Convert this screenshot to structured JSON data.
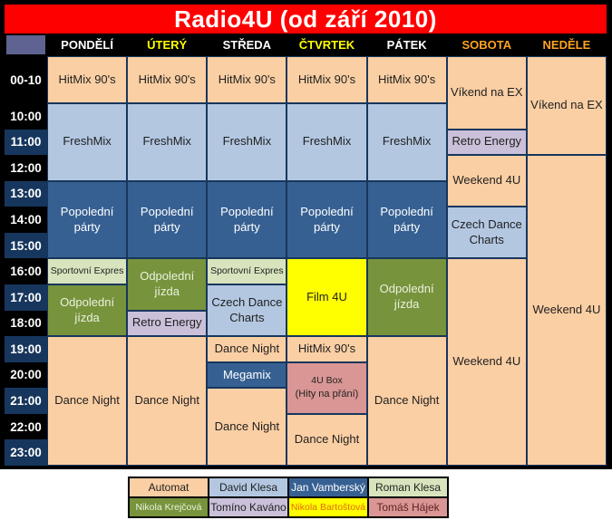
{
  "title": "Radio4U (od září 2010)",
  "ui_colors": {
    "title_bg": "#FF0000",
    "title_text": "#FFFFFF",
    "frame_and_header_bg": "#000000",
    "time_row_black": "#000000",
    "time_row_navy": "#17365D",
    "corner_cell": "#5F6391",
    "grid_border": "#17365D",
    "day_label_white": "#FFFFFF",
    "day_label_yellow": "#FFFF00",
    "day_label_orange": "#FFA321"
  },
  "colors": {
    "peach": {
      "bg": "#FBCFA4",
      "text": "#1F1F1F"
    },
    "lightblue": {
      "bg": "#B3C7E1",
      "text": "#1F1F1F"
    },
    "steelblue": {
      "bg": "#376092",
      "text": "#FFFFFF"
    },
    "lightgreen": {
      "bg": "#D7E4BD",
      "text": "#1F1F1F"
    },
    "olive": {
      "bg": "#77933C",
      "text": "#EBF1DE"
    },
    "purple": {
      "bg": "#CBC0D9",
      "text": "#1F1F1F"
    },
    "yellow": {
      "bg": "#FFFF00",
      "text": "#1F1F1F"
    },
    "rose": {
      "bg": "#D99694",
      "text": "#1F1F1F"
    }
  },
  "header": {
    "days": [
      {
        "label": "PONDĚLÍ",
        "color": "#FFFFFF"
      },
      {
        "label": "ÚTERÝ",
        "color": "#FFFF00"
      },
      {
        "label": "STŘEDA",
        "color": "#FFFFFF"
      },
      {
        "label": "ČTVRTEK",
        "color": "#FFFF00"
      },
      {
        "label": "PÁTEK",
        "color": "#FFFFFF"
      },
      {
        "label": "SOBOTA",
        "color": "#FFA321"
      },
      {
        "label": "NEDĚLE",
        "color": "#FFA321"
      }
    ]
  },
  "schedule": {
    "times": [
      {
        "label": "00-10",
        "bg": "#000000"
      },
      {
        "label": "10:00",
        "bg": "#000000"
      },
      {
        "label": "11:00",
        "bg": "#17365D"
      },
      {
        "label": "12:00",
        "bg": "#000000"
      },
      {
        "label": "13:00",
        "bg": "#17365D"
      },
      {
        "label": "14:00",
        "bg": "#000000"
      },
      {
        "label": "15:00",
        "bg": "#17365D"
      },
      {
        "label": "16:00",
        "bg": "#000000"
      },
      {
        "label": "17:00",
        "bg": "#17365D"
      },
      {
        "label": "18:00",
        "bg": "#000000"
      },
      {
        "label": "19:00",
        "bg": "#17365D"
      },
      {
        "label": "20:00",
        "bg": "#000000"
      },
      {
        "label": "21:00",
        "bg": "#17365D"
      },
      {
        "label": "22:00",
        "bg": "#000000"
      },
      {
        "label": "23:00",
        "bg": "#17365D"
      }
    ],
    "cells": [
      {
        "day": 1,
        "row": 1,
        "rowspan": 1,
        "label": "HitMix 90's",
        "color": "peach"
      },
      {
        "day": 1,
        "row": 2,
        "rowspan": 3,
        "label": "FreshMix",
        "color": "lightblue"
      },
      {
        "day": 1,
        "row": 5,
        "rowspan": 3,
        "label": "Popolední párty",
        "color": "steelblue"
      },
      {
        "day": 1,
        "row": 8,
        "rowspan": 1,
        "label": "Sportovní Expres",
        "color": "lightgreen",
        "small": true
      },
      {
        "day": 1,
        "row": 9,
        "rowspan": 2,
        "label": "Odpolední jízda",
        "color": "olive"
      },
      {
        "day": 1,
        "row": 11,
        "rowspan": 5,
        "label": "Dance Night",
        "color": "peach"
      },
      {
        "day": 2,
        "row": 1,
        "rowspan": 1,
        "label": "HitMix 90's",
        "color": "peach"
      },
      {
        "day": 2,
        "row": 2,
        "rowspan": 3,
        "label": "FreshMix",
        "color": "lightblue"
      },
      {
        "day": 2,
        "row": 5,
        "rowspan": 3,
        "label": "Popolední párty",
        "color": "steelblue"
      },
      {
        "day": 2,
        "row": 8,
        "rowspan": 2,
        "label": "Odpolední jízda",
        "color": "olive"
      },
      {
        "day": 2,
        "row": 10,
        "rowspan": 1,
        "label": "Retro Energy",
        "color": "purple"
      },
      {
        "day": 2,
        "row": 11,
        "rowspan": 5,
        "label": "Dance Night",
        "color": "peach"
      },
      {
        "day": 3,
        "row": 1,
        "rowspan": 1,
        "label": "HitMix 90's",
        "color": "peach"
      },
      {
        "day": 3,
        "row": 2,
        "rowspan": 3,
        "label": "FreshMix",
        "color": "lightblue"
      },
      {
        "day": 3,
        "row": 5,
        "rowspan": 3,
        "label": "Popolední párty",
        "color": "steelblue"
      },
      {
        "day": 3,
        "row": 8,
        "rowspan": 1,
        "label": "Sportovní Expres",
        "color": "lightgreen",
        "small": true
      },
      {
        "day": 3,
        "row": 9,
        "rowspan": 2,
        "label": "Czech Dance Charts",
        "color": "lightblue"
      },
      {
        "day": 3,
        "row": 11,
        "rowspan": 1,
        "label": "Dance Night",
        "color": "peach"
      },
      {
        "day": 3,
        "row": 12,
        "rowspan": 1,
        "label": "Megamix",
        "color": "steelblue"
      },
      {
        "day": 3,
        "row": 13,
        "rowspan": 3,
        "label": "Dance Night",
        "color": "peach"
      },
      {
        "day": 4,
        "row": 1,
        "rowspan": 1,
        "label": "HitMix 90's",
        "color": "peach"
      },
      {
        "day": 4,
        "row": 2,
        "rowspan": 3,
        "label": "FreshMix",
        "color": "lightblue"
      },
      {
        "day": 4,
        "row": 5,
        "rowspan": 3,
        "label": "Popolední párty",
        "color": "steelblue"
      },
      {
        "day": 4,
        "row": 8,
        "rowspan": 3,
        "label": "Film 4U",
        "color": "yellow"
      },
      {
        "day": 4,
        "row": 11,
        "rowspan": 1,
        "label": "HitMix 90's",
        "color": "peach"
      },
      {
        "day": 4,
        "row": 12,
        "rowspan": 2,
        "label": "4U Box",
        "label2": "(Hity na přání)",
        "color": "rose",
        "small": true
      },
      {
        "day": 4,
        "row": 14,
        "rowspan": 2,
        "label": "Dance Night",
        "color": "peach"
      },
      {
        "day": 5,
        "row": 1,
        "rowspan": 1,
        "label": "HitMix 90's",
        "color": "peach"
      },
      {
        "day": 5,
        "row": 2,
        "rowspan": 3,
        "label": "FreshMix",
        "color": "lightblue"
      },
      {
        "day": 5,
        "row": 5,
        "rowspan": 3,
        "label": "Popolední párty",
        "color": "steelblue"
      },
      {
        "day": 5,
        "row": 8,
        "rowspan": 3,
        "label": "Odpolední jízda",
        "color": "olive"
      },
      {
        "day": 5,
        "row": 11,
        "rowspan": 5,
        "label": "Dance Night",
        "color": "peach"
      },
      {
        "day": 6,
        "row": 1,
        "rowspan": 2,
        "label": "Víkend na EX",
        "color": "peach"
      },
      {
        "day": 6,
        "row": 3,
        "rowspan": 1,
        "label": "Retro Energy",
        "color": "purple"
      },
      {
        "day": 6,
        "row": 4,
        "rowspan": 2,
        "label": "Weekend 4U",
        "color": "peach"
      },
      {
        "day": 6,
        "row": 6,
        "rowspan": 2,
        "label": "Czech Dance Charts",
        "color": "lightblue"
      },
      {
        "day": 6,
        "row": 8,
        "rowspan": 8,
        "label": "Weekend 4U",
        "color": "peach"
      },
      {
        "day": 7,
        "row": 1,
        "rowspan": 3,
        "label": "Víkend na EX",
        "color": "peach"
      },
      {
        "day": 7,
        "row": 4,
        "rowspan": 12,
        "label": "Weekend 4U",
        "color": "peach"
      }
    ]
  },
  "legend": {
    "text_overrides": {
      "yellow": "#E36C09",
      "rose": "#5E2321"
    },
    "rows": [
      [
        {
          "label": "Automat",
          "color": "peach"
        },
        {
          "label": "David Klesa",
          "color": "lightblue"
        },
        {
          "label": "Jan Vamberský",
          "color": "steelblue"
        },
        {
          "label": "Roman Klesa",
          "color": "lightgreen"
        }
      ],
      [
        {
          "label": "Nikola Krejčová",
          "color": "olive"
        },
        {
          "label": "Tomíno Kaváno",
          "color": "purple"
        },
        {
          "label": "Nikola Bartoštová",
          "color": "yellow"
        },
        {
          "label": "Tomáš Hájek",
          "color": "rose"
        }
      ]
    ]
  }
}
